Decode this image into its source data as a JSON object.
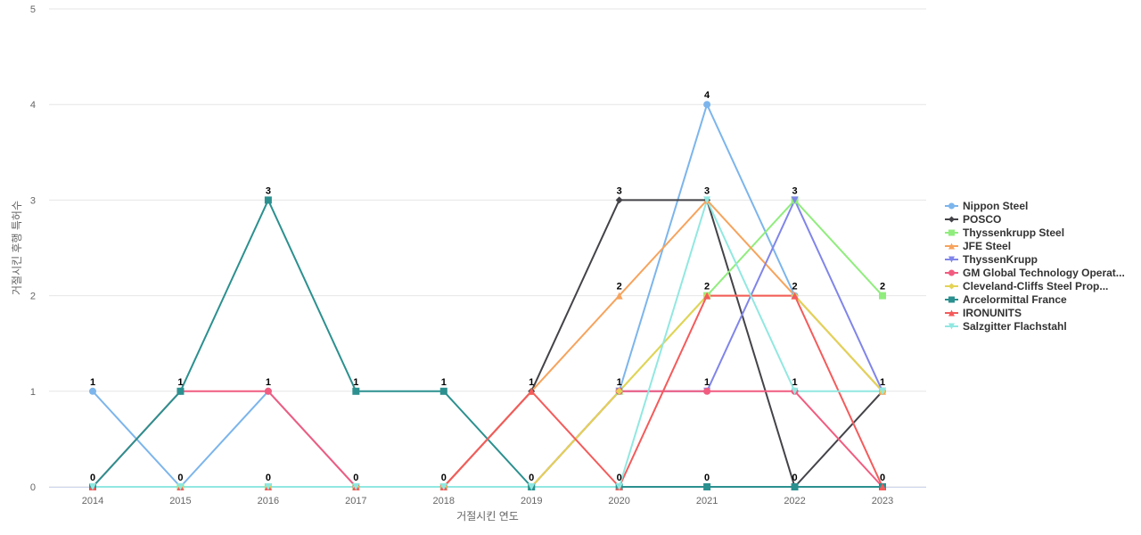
{
  "chart_data": {
    "type": "line",
    "title": "",
    "xlabel": "거절시킨 연도",
    "ylabel": "거절시킨 후행 특허수",
    "x": [
      "2014",
      "2015",
      "2016",
      "2017",
      "2018",
      "2019",
      "2020",
      "2021",
      "2022",
      "2023"
    ],
    "ylim": [
      0,
      5
    ],
    "yticks": [
      0,
      1,
      2,
      3,
      4,
      5
    ],
    "grid": true,
    "legend_position": "right",
    "series": [
      {
        "name": "Nippon Steel",
        "color": "#7cb5ec",
        "marker": "circle",
        "values": [
          1,
          0,
          1,
          0,
          0,
          0,
          1,
          4,
          2,
          1
        ]
      },
      {
        "name": "POSCO",
        "color": "#434348",
        "marker": "diamond",
        "values": [
          0,
          0,
          0,
          0,
          0,
          1,
          3,
          3,
          0,
          1
        ]
      },
      {
        "name": "Thyssenkrupp Steel",
        "color": "#90ed7d",
        "marker": "square",
        "values": [
          0,
          0,
          0,
          0,
          0,
          0,
          1,
          2,
          3,
          2
        ]
      },
      {
        "name": "JFE Steel",
        "color": "#f7a35c",
        "marker": "triangle",
        "values": [
          0,
          0,
          0,
          0,
          0,
          1,
          2,
          3,
          2,
          1
        ]
      },
      {
        "name": "ThyssenKrupp",
        "color": "#8085e9",
        "marker": "triangle-down",
        "values": [
          0,
          0,
          0,
          0,
          0,
          0,
          1,
          1,
          3,
          1
        ]
      },
      {
        "name": "GM Global Technology Operat...",
        "color": "#f15c80",
        "marker": "circle",
        "values": [
          0,
          1,
          1,
          0,
          0,
          0,
          1,
          1,
          1,
          0
        ]
      },
      {
        "name": "Cleveland-Cliffs Steel Prop...",
        "color": "#e4d354",
        "marker": "diamond",
        "values": [
          0,
          0,
          0,
          0,
          0,
          0,
          1,
          2,
          2,
          1
        ]
      },
      {
        "name": "Arcelormittal France",
        "color": "#2b908f",
        "marker": "square",
        "values": [
          0,
          1,
          3,
          1,
          1,
          0,
          0,
          0,
          0,
          0
        ]
      },
      {
        "name": "IRONUNITS",
        "color": "#f45b5b",
        "marker": "triangle",
        "values": [
          0,
          0,
          0,
          0,
          0,
          1,
          0,
          2,
          2,
          0
        ]
      },
      {
        "name": "Salzgitter Flachstahl",
        "color": "#91e8e1",
        "marker": "triangle-down",
        "values": [
          0,
          0,
          0,
          0,
          0,
          0,
          0,
          3,
          1,
          1
        ]
      }
    ],
    "data_labels": [
      {
        "x": "2014",
        "series": "Nippon Steel",
        "text": "1"
      },
      {
        "x": "2014",
        "series": "POSCO",
        "text": "0"
      },
      {
        "x": "2015",
        "series": "GM Global Technology Operat...",
        "text": "1"
      },
      {
        "x": "2015",
        "series": "Nippon Steel",
        "text": "0"
      },
      {
        "x": "2016",
        "series": "Arcelormittal France",
        "text": "3"
      },
      {
        "x": "2016",
        "series": "Nippon Steel",
        "text": "1"
      },
      {
        "x": "2016",
        "series": "POSCO",
        "text": "0"
      },
      {
        "x": "2017",
        "series": "Arcelormittal France",
        "text": "1"
      },
      {
        "x": "2017",
        "series": "POSCO",
        "text": "0"
      },
      {
        "x": "2018",
        "series": "Arcelormittal France",
        "text": "1"
      },
      {
        "x": "2018",
        "series": "POSCO",
        "text": "0"
      },
      {
        "x": "2019",
        "series": "POSCO",
        "text": "1"
      },
      {
        "x": "2019",
        "series": "Nippon Steel",
        "text": "0"
      },
      {
        "x": "2020",
        "series": "POSCO",
        "text": "3"
      },
      {
        "x": "2020",
        "series": "JFE Steel",
        "text": "2"
      },
      {
        "x": "2020",
        "series": "Nippon Steel",
        "text": "1"
      },
      {
        "x": "2020",
        "series": "IRONUNITS",
        "text": "0"
      },
      {
        "x": "2021",
        "series": "Nippon Steel",
        "text": "4"
      },
      {
        "x": "2021",
        "series": "POSCO",
        "text": "3"
      },
      {
        "x": "2021",
        "series": "Thyssenkrupp Steel",
        "text": "2"
      },
      {
        "x": "2021",
        "series": "ThyssenKrupp",
        "text": "1"
      },
      {
        "x": "2021",
        "series": "Arcelormittal France",
        "text": "0"
      },
      {
        "x": "2022",
        "series": "Thyssenkrupp Steel",
        "text": "3"
      },
      {
        "x": "2022",
        "series": "Nippon Steel",
        "text": "2"
      },
      {
        "x": "2022",
        "series": "GM Global Technology Operat...",
        "text": "1"
      },
      {
        "x": "2022",
        "series": "POSCO",
        "text": "0"
      },
      {
        "x": "2023",
        "series": "Thyssenkrupp Steel",
        "text": "2"
      },
      {
        "x": "2023",
        "series": "Nippon Steel",
        "text": "1"
      },
      {
        "x": "2023",
        "series": "GM Global Technology Operat...",
        "text": "0"
      }
    ]
  }
}
